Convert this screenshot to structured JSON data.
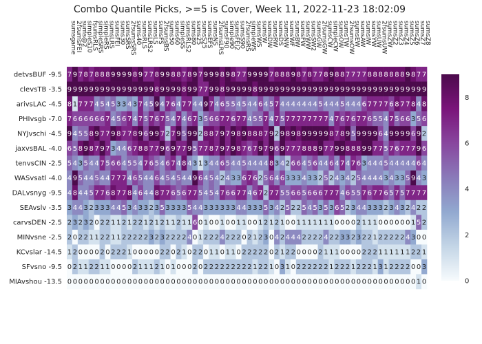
{
  "chart_data": {
    "type": "heatmap",
    "title": "Combo Quantile Picks, >=5 is Cover, Week 11, 2022-11-23 18:02:09",
    "rows": [
      "detvsBUF -9.5",
      "clevsTB -3.5",
      "arivsLAC -4.5",
      "PHIvsgb -7.0",
      "NYJvschi -4.5",
      "jaxvsBAL -4.0",
      "tenvsCIN -2.5",
      "WASvsatl -4.0",
      "DALvsnyg -9.5",
      "SEAvslv -3.5",
      "carvsDEN -2.5",
      "MINvsne -2.5",
      "KCvslar -14.5",
      "SFvsno -9.5",
      "MIAvshou -13.5"
    ],
    "columns": [
      "sumsgame",
      "2fsumsFEI",
      "sums@2",
      "simpleS10",
      "fsumsRLS",
      "simpleSRS",
      "simpleRS",
      "sumsLRS",
      "sumsFEI",
      "sums30",
      "sumsSRS",
      "2fsumsSRS",
      "sums40",
      "sumsRLS",
      "sumsLRS2",
      "sumsLS",
      "sumsFS",
      "2fsumsBS",
      "sums50",
      "sums60",
      "simpleSS",
      "sumsRLS2",
      "sums80",
      "sums25",
      "sumsS25",
      "sumsEFS",
      "sumsNS",
      "2fsumsLRS",
      "sumsF90",
      "simple90",
      "sumsFEI2",
      "sumsS90",
      "2fsumsRS",
      "simpleWS",
      "sumsWS",
      "sumsW",
      "sumsDW",
      "sumsRW",
      "sumsDS",
      "sumsNW",
      "sumsWF",
      "sumsBW",
      "sumsFW",
      "sumsWW",
      "sumsSW2",
      "sumsGW",
      "2fsumsGW",
      "sumsCW",
      "simpleCW",
      "sumsOW",
      "sumsTW",
      "2fsumsOW",
      "sumsEW",
      "sumsAW",
      "sumsIW",
      "sumsYW",
      "sumsUW",
      "2fsumsUW",
      "sumsZW",
      "sumsZ2",
      "sumsZ3",
      "sumsZ4",
      "sumsZ5",
      "sumsZ6",
      "sumsZ7",
      "sumsZ8",
      "sumsZ9",
      "sumsZ10",
      "sumsZ11",
      "sumsZ12",
      "sumsZ13",
      "sumsZ14",
      "sumsZ15",
      "sumsZ16",
      "sumsZ17"
    ],
    "values": [
      "797878889999897789988789799989877999978889878778988777788888889877",
      "999999999999999989999899779989999989999999999999999999999999999999",
      "817774545334374594764774497465545446457444444454445444677776877848",
      "766666674567475767547467356677677455747577777777476767765547566356",
      "945589779877896997279599288797989888792989899999878959999649999692",
      "658987973446788779697795778797987679796977788897799888997757677796",
      "543544756645547654674843134465445444483426645644647476344454444464",
      "495445447774654464545449645424336762564633343325243425444434335943",
      "484457768778464487765677545476677467277556656667774655767765757777",
      "344323334453433235333354433333344333534252254535365234433323432422",
      "232320221121221212112116010010011001212100111111100002111000000152",
      "202211221122222323222240122242220212304244422224223323221222224300",
      "120000202221000002202102201101102222202122000021110000222111111221",
      "021122110000211121010002022222222212210310222222122212221312222003",
      "000000000000000000000000000000000000000000000000000000000000000010"
    ],
    "colorbar": {
      "min": 0,
      "max": 9,
      "ticks": [
        0,
        2,
        4,
        6,
        8
      ]
    },
    "colorscale": [
      "#f7fbfd",
      "#c3d5e6",
      "#92a9d0",
      "#8a7ab9",
      "#88469e",
      "#7a147a",
      "#4c0b4c"
    ]
  }
}
